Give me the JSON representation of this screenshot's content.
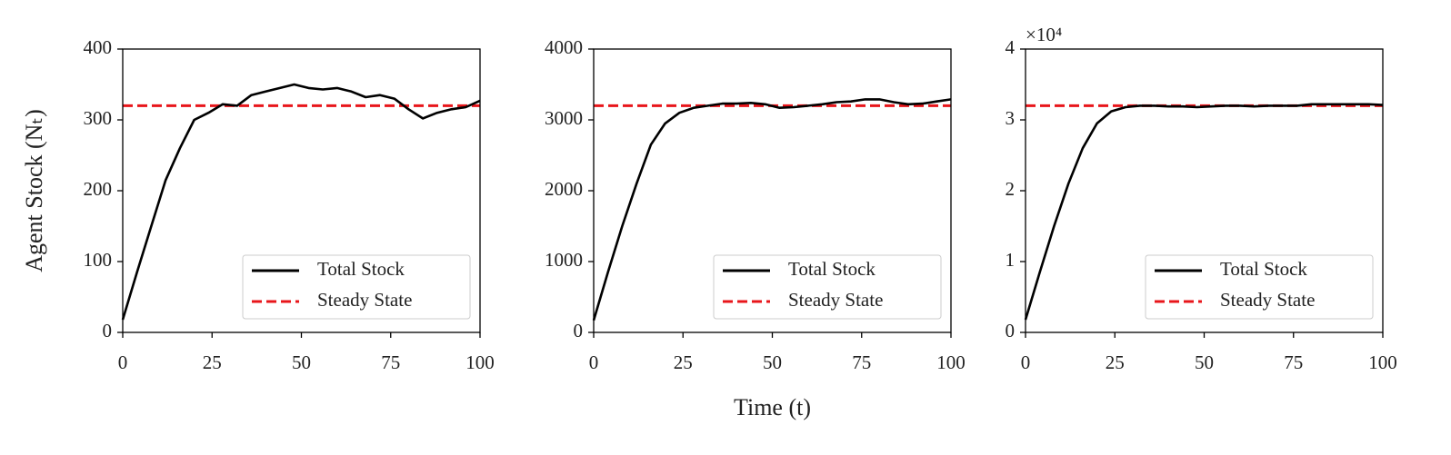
{
  "chart_data": [
    {
      "type": "line",
      "ylabel": "Agent Stock (Nₜ)",
      "x": [
        0,
        4,
        8,
        12,
        16,
        20,
        24,
        28,
        32,
        36,
        40,
        44,
        48,
        52,
        56,
        60,
        64,
        68,
        72,
        76,
        80,
        84,
        88,
        92,
        96,
        100
      ],
      "series": [
        {
          "name": "Total Stock",
          "color": "#000000",
          "values": [
            18,
            85,
            150,
            215,
            260,
            300,
            310,
            322,
            320,
            335,
            340,
            345,
            350,
            345,
            343,
            345,
            340,
            332,
            335,
            330,
            315,
            302,
            310,
            315,
            318,
            327
          ]
        }
      ],
      "reference_lines": [
        {
          "name": "Steady State",
          "value": 320,
          "color": "#e8161b"
        }
      ],
      "xlim": [
        0,
        100
      ],
      "xticks": [
        0,
        25,
        50,
        75,
        100
      ],
      "ylim": [
        0,
        400
      ],
      "yticks": [
        0,
        100,
        200,
        300,
        400
      ],
      "legend": "lower right"
    },
    {
      "type": "line",
      "xlabel": "Time (t)",
      "x": [
        0,
        4,
        8,
        12,
        16,
        20,
        24,
        28,
        32,
        36,
        40,
        44,
        48,
        52,
        56,
        60,
        64,
        68,
        72,
        76,
        80,
        84,
        88,
        92,
        96,
        100
      ],
      "series": [
        {
          "name": "Total Stock",
          "color": "#000000",
          "values": [
            170,
            850,
            1500,
            2100,
            2650,
            2950,
            3100,
            3170,
            3200,
            3230,
            3230,
            3240,
            3220,
            3170,
            3180,
            3200,
            3220,
            3250,
            3260,
            3290,
            3290,
            3250,
            3220,
            3230,
            3260,
            3290
          ]
        }
      ],
      "reference_lines": [
        {
          "name": "Steady State",
          "value": 3200,
          "color": "#e8161b"
        }
      ],
      "xlim": [
        0,
        100
      ],
      "xticks": [
        0,
        25,
        50,
        75,
        100
      ],
      "ylim": [
        0,
        4000
      ],
      "yticks": [
        0,
        1000,
        2000,
        3000,
        4000
      ],
      "legend": "lower right"
    },
    {
      "type": "line",
      "y_offset_label": "×10⁴",
      "x": [
        0,
        4,
        8,
        12,
        16,
        20,
        24,
        28,
        32,
        36,
        40,
        44,
        48,
        52,
        56,
        60,
        64,
        68,
        72,
        76,
        80,
        84,
        88,
        92,
        96,
        100
      ],
      "series": [
        {
          "name": "Total Stock",
          "color": "#000000",
          "values": [
            1800,
            8500,
            15000,
            21000,
            26000,
            29500,
            31200,
            31800,
            32000,
            32000,
            31900,
            31900,
            31800,
            31900,
            32000,
            32000,
            31900,
            32000,
            32000,
            32000,
            32200,
            32200,
            32200,
            32200,
            32200,
            32100
          ]
        }
      ],
      "reference_lines": [
        {
          "name": "Steady State",
          "value": 32000,
          "color": "#e8161b"
        }
      ],
      "xlim": [
        0,
        100
      ],
      "xticks": [
        0,
        25,
        50,
        75,
        100
      ],
      "ylim": [
        0,
        40000
      ],
      "yticks": [
        {
          "value": 0,
          "label": "0"
        },
        {
          "value": 10000,
          "label": "1"
        },
        {
          "value": 20000,
          "label": "2"
        },
        {
          "value": 30000,
          "label": "3"
        },
        {
          "value": 40000,
          "label": "4"
        }
      ],
      "legend": "lower right"
    }
  ]
}
